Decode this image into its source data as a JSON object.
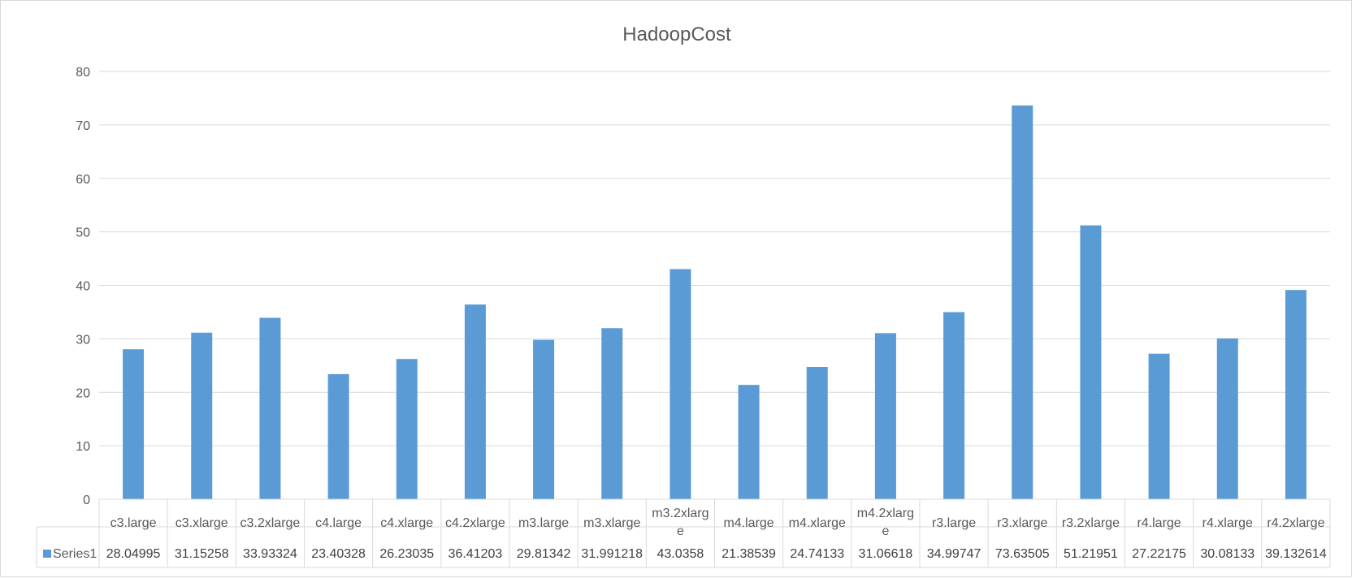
{
  "chart_data": {
    "type": "bar",
    "title": "HadoopCost",
    "xlabel": "",
    "ylabel": "",
    "ylim": [
      0,
      80
    ],
    "yticks": [
      0,
      10,
      20,
      30,
      40,
      50,
      60,
      70,
      80
    ],
    "grid": true,
    "legend_placement": "data-table-left",
    "categories": [
      "c3.large",
      "c3.xlarge",
      "c3.2xlarge",
      "c4.large",
      "c4.xlarge",
      "c4.2xlarge",
      "m3.large",
      "m3.xlarge",
      "m3.2xlarge",
      "m4.large",
      "m4.xlarge",
      "m4.2xlarge",
      "r3.large",
      "r3.xlarge",
      "r3.2xlarge",
      "r4.large",
      "r4.xlarge",
      "r4.2xlarge"
    ],
    "category_display": [
      [
        "c3.large"
      ],
      [
        "c3.xlarge"
      ],
      [
        "c3.2xlarge"
      ],
      [
        "c4.large"
      ],
      [
        "c4.xlarge"
      ],
      [
        "c4.2xlarge"
      ],
      [
        "m3.large"
      ],
      [
        "m3.xlarge"
      ],
      [
        "m3.2xlarg",
        "e"
      ],
      [
        "m4.large"
      ],
      [
        "m4.xlarge"
      ],
      [
        "m4.2xlarg",
        "e"
      ],
      [
        "r3.large"
      ],
      [
        "r3.xlarge"
      ],
      [
        "r3.2xlarge"
      ],
      [
        "r4.large"
      ],
      [
        "r4.xlarge"
      ],
      [
        "r4.2xlarge"
      ]
    ],
    "series": [
      {
        "name": "Series1",
        "color": "#5b9bd5",
        "values": [
          28.04995,
          31.15258,
          33.93324,
          23.40328,
          26.23035,
          36.41203,
          29.81342,
          31.991218,
          43.0358,
          21.38539,
          24.74133,
          31.06618,
          34.99747,
          73.63505,
          51.21951,
          27.22175,
          30.08133,
          39.132614
        ],
        "value_labels": [
          "28.04995",
          "31.15258",
          "33.93324",
          "23.40328",
          "26.23035",
          "36.41203",
          "29.81342",
          "31.991218",
          "43.0358",
          "21.38539",
          "24.74133",
          "31.06618",
          "34.99747",
          "73.63505",
          "51.21951",
          "27.22175",
          "30.08133",
          "39.132614"
        ]
      }
    ]
  }
}
